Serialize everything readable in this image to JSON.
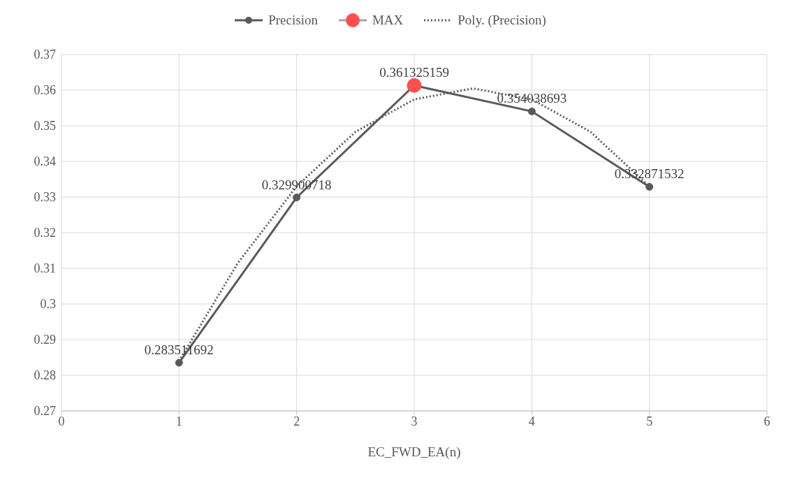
{
  "chart_data": {
    "type": "line",
    "xlabel": "EC_FWD_EA(n)",
    "xlim": [
      0,
      6
    ],
    "xticks": [
      0,
      1,
      2,
      3,
      4,
      5,
      6
    ],
    "ylim": [
      0.27,
      0.37
    ],
    "yticks": [
      0.27,
      0.28,
      0.29,
      0.3,
      0.31,
      0.32,
      0.33,
      0.34,
      0.35,
      0.36,
      0.37
    ],
    "grid": true,
    "legend": "top",
    "series": [
      {
        "name": "Precision",
        "color": "#595959",
        "marker": "circle",
        "line_style": "solid",
        "x": [
          1,
          2,
          3,
          4,
          5
        ],
        "values": [
          0.283511692,
          0.329900718,
          0.361325159,
          0.354038693,
          0.332871532
        ],
        "value_labels": [
          "0.283511692",
          "0.329900718",
          "0.361325159",
          "0.354038693",
          "0.332871532"
        ]
      },
      {
        "name": "MAX",
        "color": "#ff5050",
        "marker": "circle",
        "x": [
          3
        ],
        "values": [
          0.361325159
        ]
      },
      {
        "name": "Poly. (Precision)",
        "color": "#595959",
        "marker": "none",
        "line_style": "dotted",
        "x": [
          1,
          1.5,
          2,
          2.5,
          3,
          3.5,
          4,
          4.5,
          5
        ],
        "values": [
          0.284,
          0.3115,
          0.333,
          0.3483,
          0.3574,
          0.3605,
          0.3574,
          0.3483,
          0.333
        ]
      }
    ]
  }
}
